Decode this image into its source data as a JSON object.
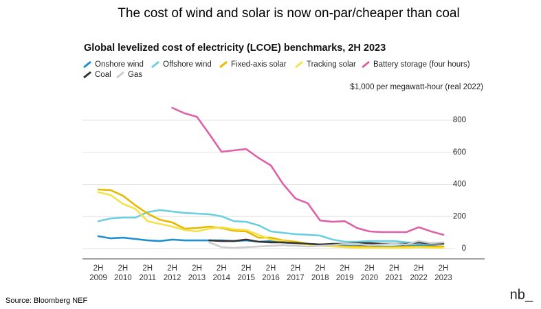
{
  "headline": "The cost of wind and solar is now on-par/cheaper than coal",
  "source": "Source: Bloomberg NEF",
  "logo": "nb_",
  "chart_data": {
    "type": "line",
    "title": "Global levelized cost of electricity (LCOE) benchmarks, 2H 2023",
    "y_label": "$1,000 per megawatt-hour (real 2022)",
    "categories": [
      "2H 2009",
      null,
      "2H 2010",
      null,
      "2H 2011",
      null,
      "2H 2012",
      null,
      "2H 2013",
      null,
      "2H 2014",
      null,
      "2H 2015",
      null,
      "2H 2016",
      null,
      "2H 2017",
      null,
      "2H 2018",
      null,
      "2H 2019",
      null,
      "2H 2020",
      null,
      "2H 2021",
      null,
      "2H 2022",
      null,
      "2H 2023"
    ],
    "ylim": [
      -64,
      907
    ],
    "yticks": [
      0,
      200,
      400,
      600,
      800
    ],
    "grid": true,
    "series": [
      {
        "name": "Onshore wind",
        "color": "#1f8fd0",
        "values": [
          77,
          64,
          68,
          60,
          51,
          47,
          56,
          51,
          51,
          51,
          51,
          47,
          51,
          43,
          47,
          38,
          34,
          30,
          26,
          21,
          17,
          17,
          13,
          13,
          13,
          17,
          21,
          17,
          13
        ]
      },
      {
        "name": "Offshore wind",
        "color": "#6ccfe0",
        "values": [
          171,
          188,
          193,
          193,
          227,
          240,
          231,
          222,
          218,
          214,
          201,
          171,
          167,
          145,
          107,
          98,
          90,
          86,
          81,
          56,
          43,
          43,
          47,
          47,
          47,
          39,
          34,
          30,
          30
        ]
      },
      {
        "name": "Fixed-axis solar",
        "color": "#e8b800",
        "values": [
          368,
          364,
          329,
          270,
          218,
          180,
          163,
          124,
          128,
          137,
          128,
          111,
          107,
          68,
          68,
          51,
          43,
          30,
          21,
          17,
          13,
          13,
          9,
          9,
          9,
          13,
          13,
          13,
          13
        ]
      },
      {
        "name": "Tracking solar",
        "color": "#f5e14a",
        "values": [
          351,
          334,
          278,
          248,
          171,
          154,
          137,
          116,
          107,
          124,
          133,
          120,
          116,
          86,
          56,
          47,
          34,
          26,
          17,
          13,
          9,
          4,
          4,
          4,
          4,
          4,
          9,
          4,
          4
        ]
      },
      {
        "name": "Battery storage (four hours)",
        "color": "#e060a8",
        "values": [
          null,
          null,
          null,
          null,
          null,
          null,
          877,
          843,
          821,
          714,
          603,
          612,
          620,
          565,
          518,
          402,
          312,
          282,
          175,
          167,
          171,
          128,
          107,
          103,
          103,
          103,
          133,
          107,
          86
        ]
      },
      {
        "name": "Coal",
        "color": "#333333",
        "values": [
          null,
          null,
          null,
          null,
          null,
          null,
          null,
          null,
          null,
          51,
          47,
          47,
          56,
          43,
          39,
          39,
          34,
          30,
          26,
          30,
          30,
          34,
          34,
          30,
          30,
          30,
          39,
          30,
          30
        ]
      },
      {
        "name": "Gas",
        "color": "#cccccc",
        "values": [
          null,
          null,
          null,
          null,
          null,
          null,
          null,
          null,
          null,
          39,
          9,
          4,
          9,
          13,
          17,
          21,
          17,
          13,
          17,
          21,
          30,
          30,
          21,
          26,
          30,
          26,
          47,
          34,
          39
        ]
      }
    ]
  }
}
